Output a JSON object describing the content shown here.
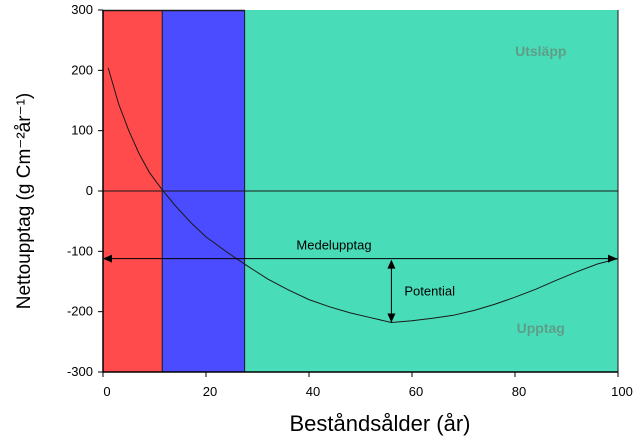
{
  "chart_data": {
    "type": "line",
    "xlabel": "Beståndsålder (år)",
    "ylabel": "Nettoupptag (g Cm⁻²år⁻¹)",
    "xlim": [
      0,
      100
    ],
    "ylim": [
      -300,
      300
    ],
    "x_ticks": [
      0,
      20,
      40,
      60,
      80,
      100
    ],
    "y_ticks": [
      300,
      200,
      100,
      0,
      -100,
      -200,
      -300
    ],
    "grid": false,
    "zero_line": true,
    "regions": [
      {
        "x_start": 0,
        "x_end": 11.5,
        "color": "#ff4b4b"
      },
      {
        "x_start": 11.5,
        "x_end": 27.5,
        "color": "#4b4bff"
      },
      {
        "x_start": 27.5,
        "x_end": 100,
        "color": "#48ddb8"
      }
    ],
    "series": [
      {
        "color": "#1a1a1a",
        "x": [
          1,
          3,
          5,
          7,
          9,
          11.5,
          14,
          17,
          20,
          24,
          28,
          32,
          36,
          40,
          44,
          48,
          52,
          56,
          60,
          64,
          68,
          72,
          76,
          80,
          84,
          88,
          92,
          96,
          100
        ],
        "y": [
          204,
          145,
          100,
          62,
          31,
          2,
          -24,
          -52,
          -76,
          -101,
          -124,
          -146,
          -164,
          -180,
          -192,
          -202,
          -210,
          -218,
          -215,
          -211,
          -206,
          -198,
          -188,
          -176,
          -163,
          -148,
          -134,
          -121,
          -112
        ]
      }
    ],
    "reference_lines": [
      {
        "label": "Medelupptag",
        "y": -112,
        "x_start": 0,
        "x_end": 100,
        "arrows": "both"
      },
      {
        "label": "Potential",
        "x": 56,
        "y_start": -112,
        "y_end": -218,
        "arrows": "both"
      }
    ],
    "annotations": [
      {
        "text": "Utsläpp",
        "x": 85,
        "y": 232,
        "color": "#5e9e88"
      },
      {
        "text": "Upptag",
        "x": 85,
        "y": -227,
        "color": "#5e9e88"
      }
    ]
  }
}
